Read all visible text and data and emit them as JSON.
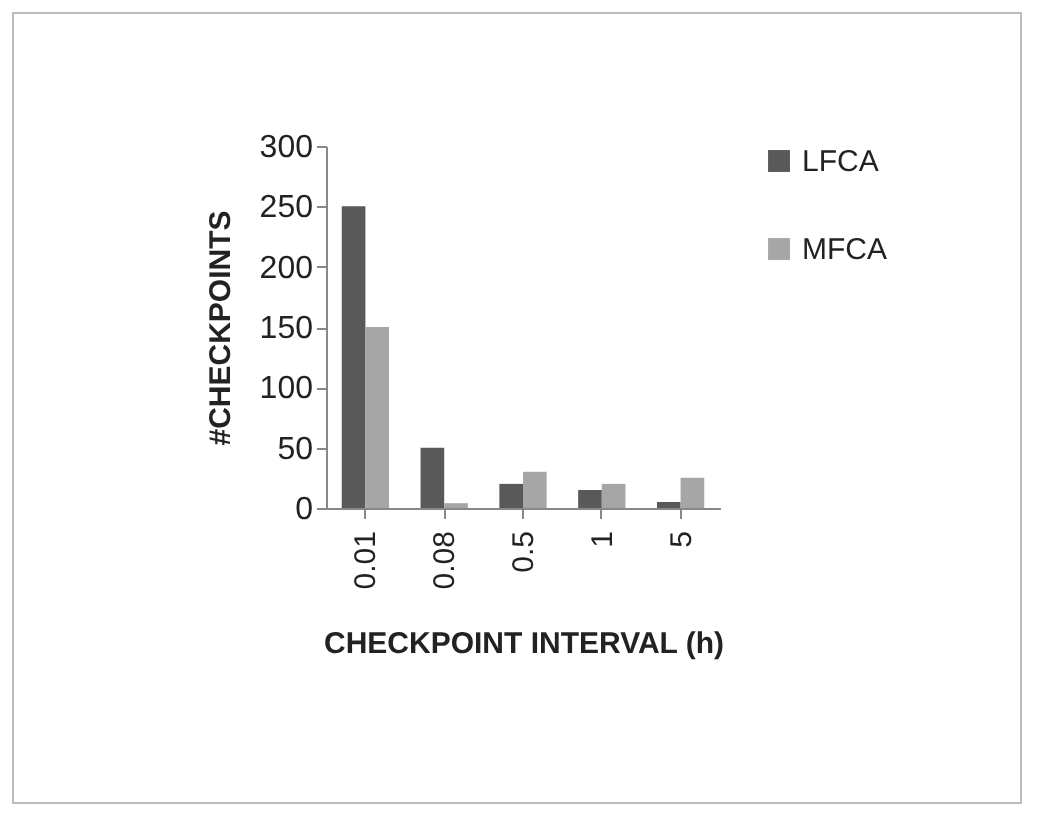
{
  "chart_data": {
    "type": "bar",
    "xlabel": "CHECKPOINT INTERVAL (h)",
    "ylabel": "#CHECKPOINTS",
    "categories": [
      "0.01",
      "0.08",
      "0.5",
      "1",
      "5"
    ],
    "series": [
      {
        "name": "LFCA",
        "color": "#595959",
        "values": [
          250,
          50,
          20,
          15,
          5
        ]
      },
      {
        "name": "MFCA",
        "color": "#a6a6a6",
        "values": [
          150,
          4,
          30,
          20,
          25
        ]
      }
    ],
    "ylim": [
      0,
      300
    ],
    "yticks": [
      0,
      50,
      100,
      150,
      200,
      250,
      300
    ],
    "grid": false,
    "legend": "right"
  }
}
